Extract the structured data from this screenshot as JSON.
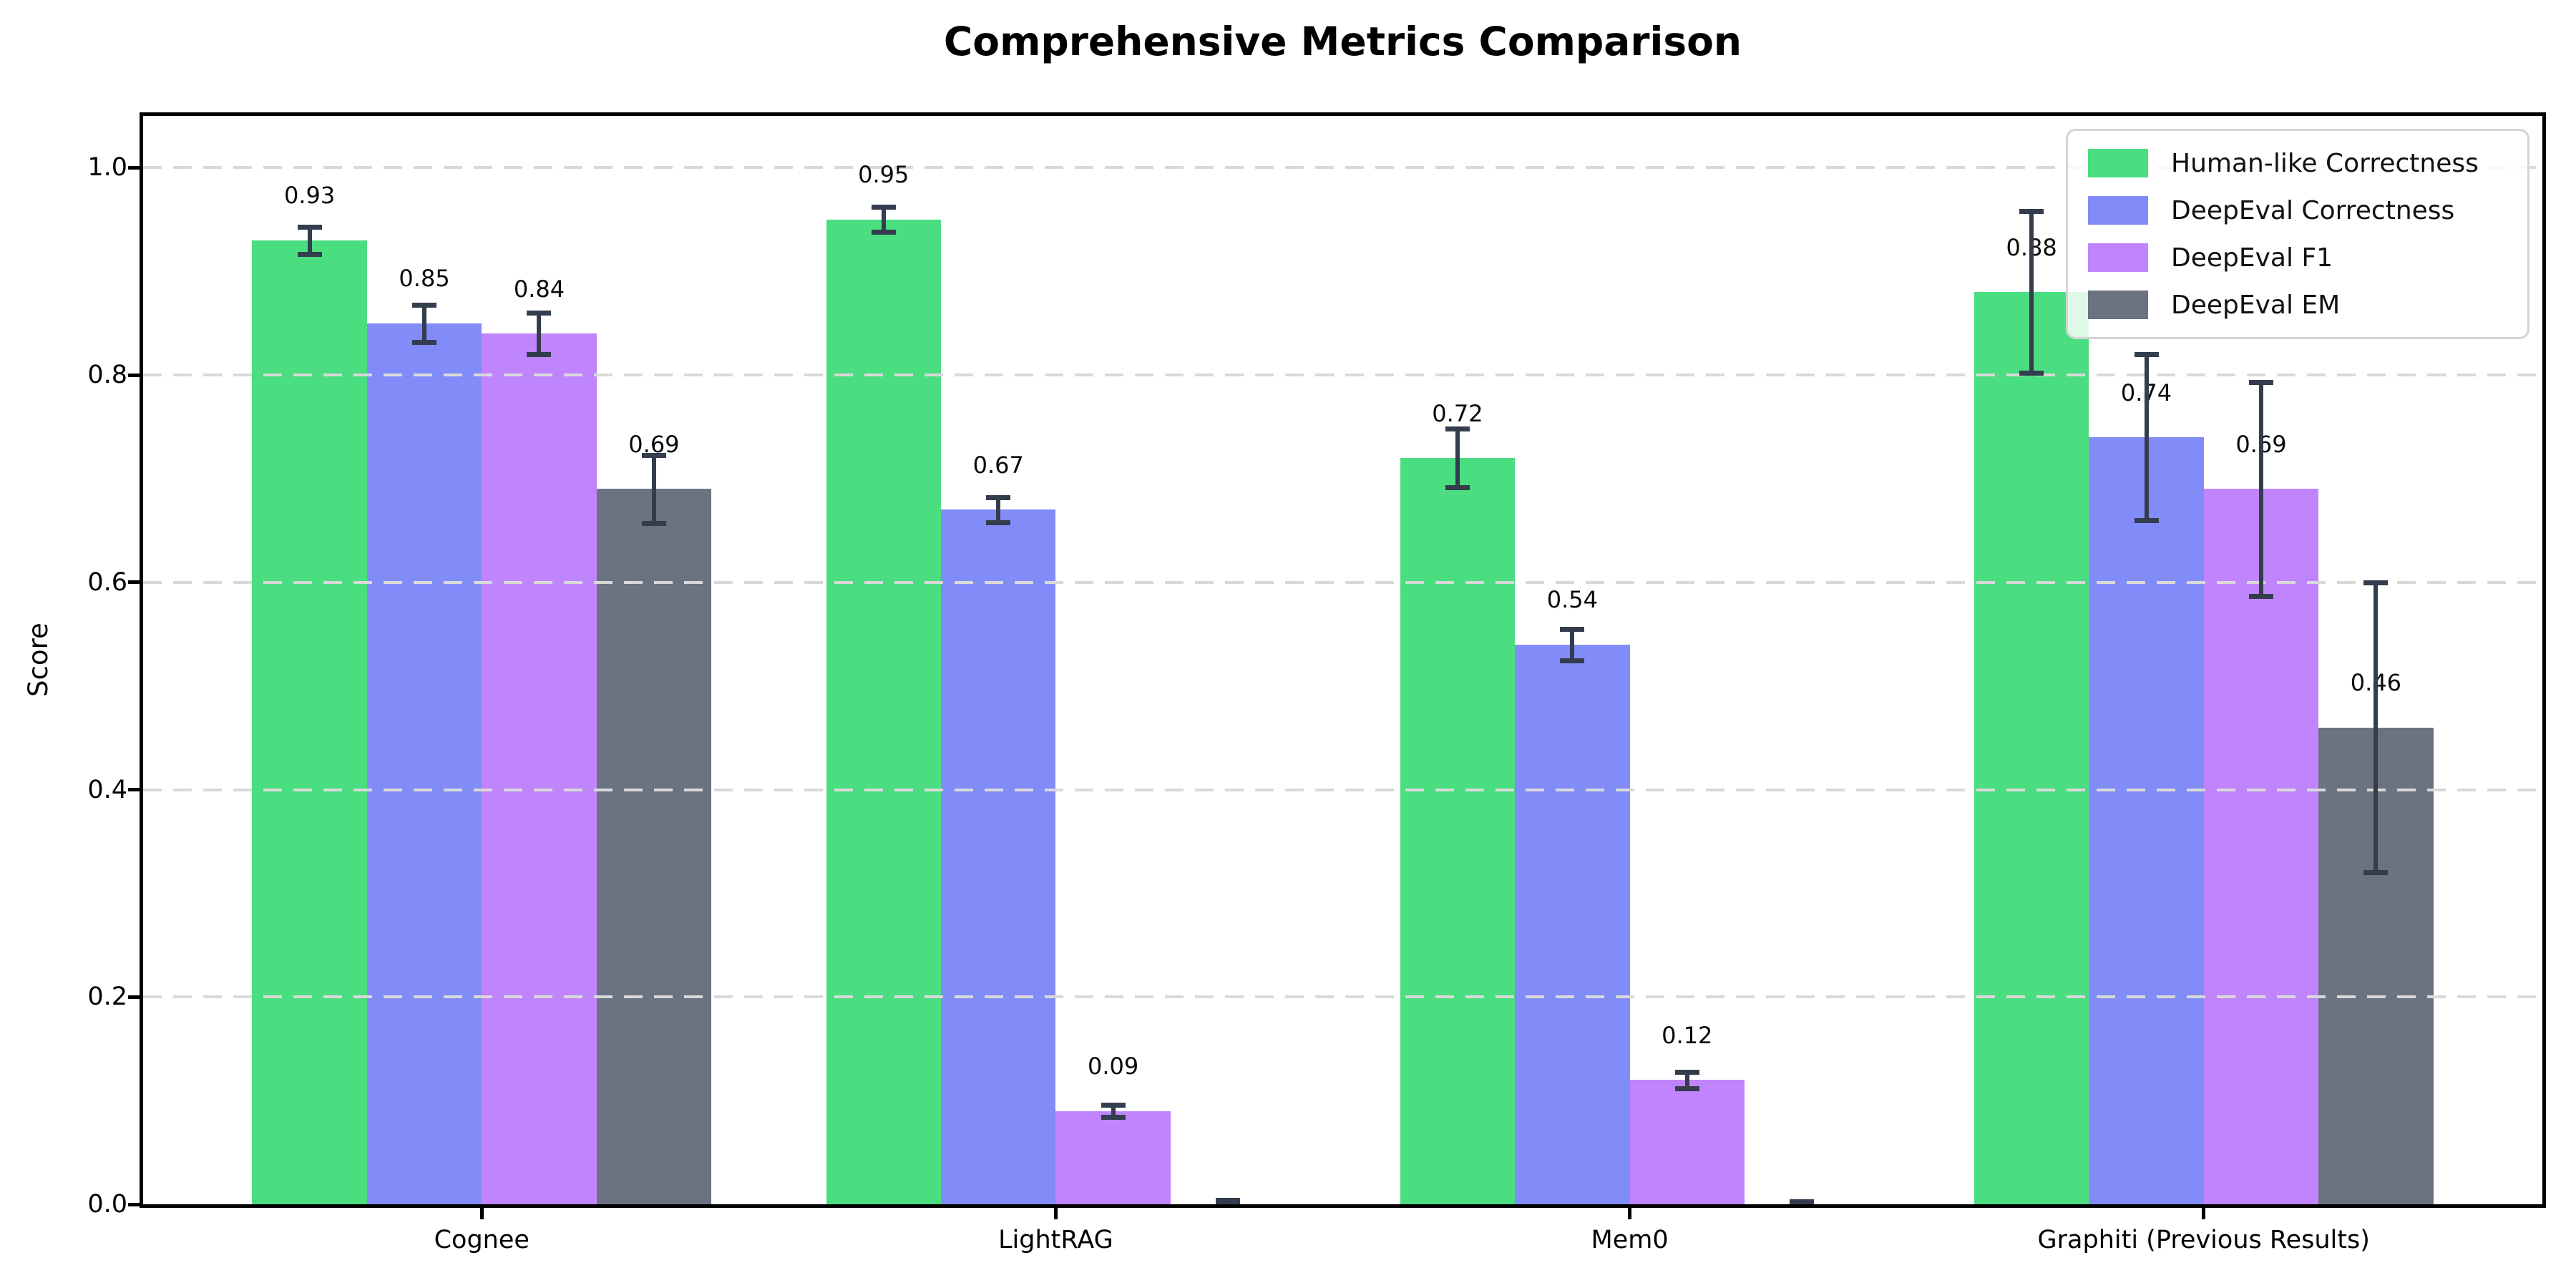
{
  "title": "Comprehensive Metrics Comparison",
  "chart_data": {
    "type": "bar",
    "title": "Comprehensive Metrics Comparison",
    "ylabel": "Score",
    "xlabel": "",
    "categories": [
      "Cognee",
      "LightRAG",
      "Mem0",
      "Graphiti (Previous Results)"
    ],
    "series": [
      {
        "name": "Human-like Correctness",
        "color": "#4ade80",
        "values": [
          0.93,
          0.95,
          0.72,
          0.88
        ],
        "errors": [
          0.013,
          0.012,
          0.028,
          0.078
        ],
        "labels": [
          "0.93",
          "0.95",
          "0.72",
          "0.88"
        ]
      },
      {
        "name": "DeepEval Correctness",
        "color": "#818cf8",
        "values": [
          0.85,
          0.67,
          0.54,
          0.74
        ],
        "errors": [
          0.018,
          0.012,
          0.015,
          0.08
        ],
        "labels": [
          "0.85",
          "0.67",
          "0.54",
          "0.74"
        ]
      },
      {
        "name": "DeepEval F1",
        "color": "#c084fc",
        "values": [
          0.84,
          0.09,
          0.12,
          0.69
        ],
        "errors": [
          0.02,
          0.006,
          0.008,
          0.103
        ],
        "labels": [
          "0.84",
          "0.09",
          "0.12",
          "0.69"
        ]
      },
      {
        "name": "DeepEval EM",
        "color": "#6b7280",
        "values": [
          0.69,
          0.0,
          0.0,
          0.46
        ],
        "errors": [
          0.033,
          0.004,
          0.003,
          0.14
        ],
        "labels": [
          "0.69",
          null,
          null,
          "0.46"
        ]
      }
    ],
    "yticks": [
      0.0,
      0.2,
      0.4,
      0.6,
      0.8,
      1.0
    ],
    "ytick_labels": [
      "0.0",
      "0.2",
      "0.4",
      "0.6",
      "0.8",
      "1.0"
    ],
    "ylim": [
      0,
      1.05
    ],
    "bar_width": 0.2,
    "grid": "horizontal-dashed",
    "grid_on": true,
    "legend_position": "upper-right",
    "colors": {
      "error_bar": "#333d4d",
      "grid": "#d9d9d9",
      "axis": "#000000",
      "legend_border": "#d4d4d4",
      "background": "#ffffff"
    }
  }
}
